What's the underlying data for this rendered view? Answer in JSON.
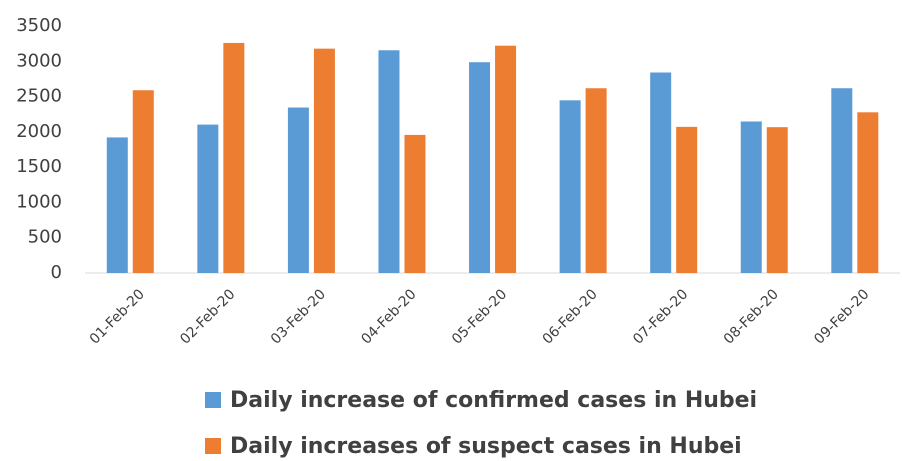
{
  "chart_data": {
    "type": "bar",
    "categories": [
      "01-Feb-20",
      "02-Feb-20",
      "03-Feb-20",
      "04-Feb-20",
      "05-Feb-20",
      "06-Feb-20",
      "07-Feb-20",
      "08-Feb-20",
      "09-Feb-20"
    ],
    "series": [
      {
        "name": "Daily increase of confirmed cases in Hubei",
        "color": "#5b9bd5",
        "values": [
          1921,
          2103,
          2345,
          3156,
          2987,
          2447,
          2841,
          2147,
          2618
        ]
      },
      {
        "name": "Daily increases of suspect cases in Hubei",
        "color": "#ed7d31",
        "values": [
          2590,
          3260,
          3179,
          1957,
          3221,
          2618,
          2071,
          2066,
          2277
        ]
      }
    ],
    "ylim": [
      0,
      3500
    ],
    "yticks": [
      0,
      500,
      1000,
      1500,
      2000,
      2500,
      3000,
      3500
    ],
    "grid": false,
    "legend": "bottom"
  }
}
